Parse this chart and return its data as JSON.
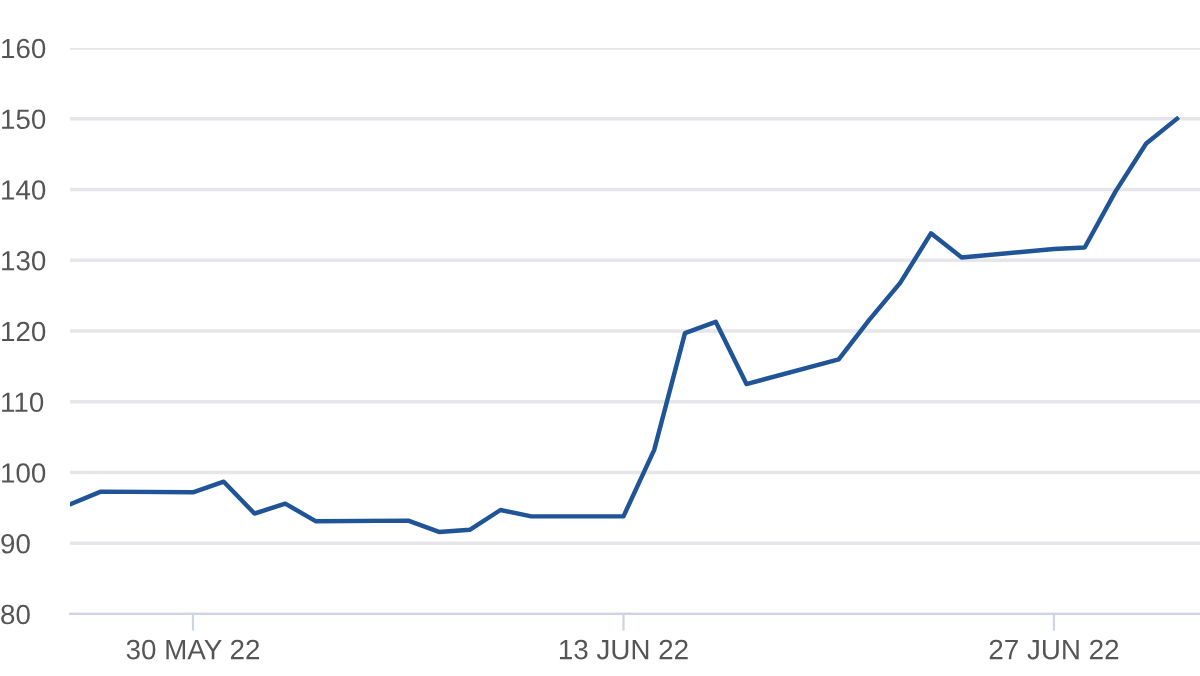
{
  "chart_data": {
    "type": "line",
    "x": [
      "2022-05-26",
      "2022-05-27",
      "2022-05-30",
      "2022-05-31",
      "2022-06-01",
      "2022-06-02",
      "2022-06-03",
      "2022-06-06",
      "2022-06-07",
      "2022-06-08",
      "2022-06-09",
      "2022-06-10",
      "2022-06-13",
      "2022-06-14",
      "2022-06-15",
      "2022-06-16",
      "2022-06-17",
      "2022-06-20",
      "2022-06-21",
      "2022-06-22",
      "2022-06-23",
      "2022-06-24",
      "2022-06-27",
      "2022-06-28",
      "2022-06-29",
      "2022-06-30",
      "2022-07-01"
    ],
    "series": [
      {
        "color": "#1f5497",
        "values": [
          95.5,
          97.3,
          97.2,
          98.7,
          94.2,
          95.6,
          93.1,
          93.2,
          91.6,
          91.9,
          94.7,
          93.8,
          93.8,
          103.2,
          119.7,
          121.3,
          112.5,
          116.0,
          121.6,
          126.8,
          133.8,
          130.4,
          131.6,
          131.8,
          139.7,
          146.5,
          150.0
        ]
      }
    ],
    "xlim": [
      "2022-05-26",
      "2022-07-01T18:00"
    ],
    "xticks": [
      {
        "value": "2022-05-30",
        "label": "30 MAY 22"
      },
      {
        "value": "2022-06-13",
        "label": "13 JUN 22"
      },
      {
        "value": "2022-06-27",
        "label": "27 JUN 22"
      }
    ],
    "ylim": [
      80,
      160
    ],
    "yticks": [
      80,
      90,
      100,
      110,
      120,
      130,
      140,
      150,
      160
    ],
    "grid": "y",
    "marker": "none",
    "line_style": "solid"
  }
}
